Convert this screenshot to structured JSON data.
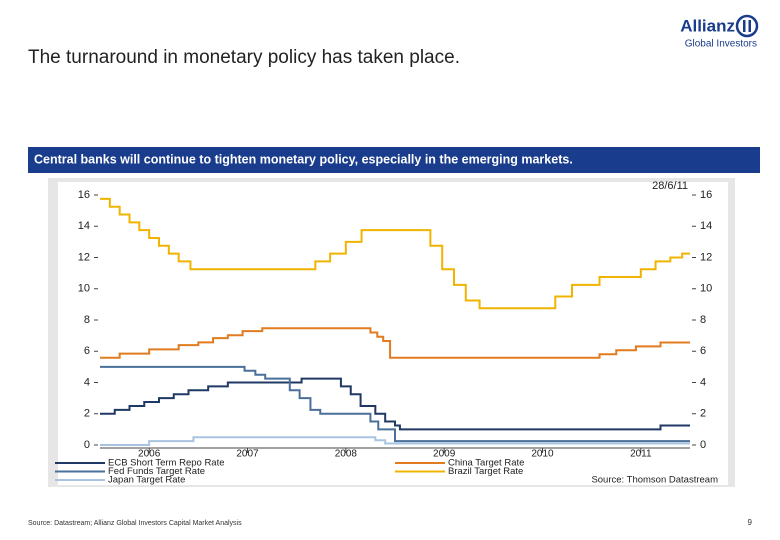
{
  "header": {
    "title": "The turnaround in monetary policy has taken place.",
    "logo": "Allianz",
    "logo_sub": "Global Investors"
  },
  "banner": "Central banks will continue to tighten monetary policy, especially in the emerging markets.",
  "chart_data": {
    "type": "line",
    "date_label": "28/6/11",
    "note": "Source: Thomson Datastream",
    "xlim": [
      2005.5,
      2011.5
    ],
    "xticks": [
      2006,
      2007,
      2008,
      2009,
      2010,
      2011
    ],
    "ylim": [
      0,
      16
    ],
    "yticks": [
      0,
      2,
      4,
      6,
      8,
      10,
      12,
      14,
      16
    ],
    "y2lim": [
      0,
      16
    ],
    "y2ticks": [
      0,
      2,
      4,
      6,
      8,
      10,
      12,
      14,
      16
    ],
    "series": [
      {
        "name": "ECB Short Term Repo Rate",
        "color": "#1f3864",
        "x": [
          2005.5,
          2005.65,
          2005.65,
          2005.8,
          2005.8,
          2005.95,
          2005.95,
          2006.1,
          2006.1,
          2006.25,
          2006.25,
          2006.4,
          2006.4,
          2006.6,
          2006.6,
          2006.8,
          2006.8,
          2007.55,
          2007.55,
          2007.95,
          2007.95,
          2008.05,
          2008.05,
          2008.15,
          2008.15,
          2008.3,
          2008.3,
          2008.4,
          2008.4,
          2008.5,
          2008.5,
          2008.55,
          2008.55,
          2011.2,
          2011.2,
          2011.5
        ],
        "values": [
          2.0,
          2.0,
          2.25,
          2.25,
          2.5,
          2.5,
          2.75,
          2.75,
          3.0,
          3.0,
          3.25,
          3.25,
          3.5,
          3.5,
          3.75,
          3.75,
          4.0,
          4.0,
          4.25,
          4.25,
          3.75,
          3.75,
          3.25,
          3.25,
          2.5,
          2.5,
          2.0,
          2.0,
          1.5,
          1.5,
          1.25,
          1.25,
          1.0,
          1.0,
          1.25,
          1.25
        ]
      },
      {
        "name": "Fed Funds Target Rate",
        "color": "#4a6f99",
        "x": [
          2005.5,
          2006.97,
          2006.97,
          2007.08,
          2007.08,
          2007.18,
          2007.18,
          2007.43,
          2007.43,
          2007.53,
          2007.53,
          2007.64,
          2007.64,
          2007.74,
          2007.74,
          2008.25,
          2008.25,
          2008.33,
          2008.33,
          2008.5,
          2008.5,
          2011.5
        ],
        "values": [
          5.0,
          5.0,
          4.75,
          4.75,
          4.5,
          4.5,
          4.25,
          4.25,
          3.5,
          3.5,
          3.0,
          3.0,
          2.25,
          2.25,
          2.0,
          2.0,
          1.5,
          1.5,
          1.0,
          1.0,
          0.25,
          0.25
        ]
      },
      {
        "name": "Japan Target Rate",
        "color": "#a9c4e0",
        "x": [
          2005.5,
          2006.0,
          2006.0,
          2006.45,
          2006.45,
          2008.3,
          2008.3,
          2008.4,
          2008.4,
          2011.5
        ],
        "values": [
          0,
          0,
          0.25,
          0.25,
          0.5,
          0.5,
          0.3,
          0.3,
          0.1,
          0.1
        ]
      },
      {
        "name": "China Target Rate",
        "color": "#e07b20",
        "x": [
          2005.5,
          2005.7,
          2005.7,
          2006.0,
          2006.0,
          2006.3,
          2006.3,
          2006.5,
          2006.5,
          2006.65,
          2006.65,
          2006.8,
          2006.8,
          2006.95,
          2006.95,
          2007.15,
          2007.15,
          2008.25,
          2008.25,
          2008.32,
          2008.32,
          2008.38,
          2008.38,
          2008.45,
          2008.45,
          2010.58,
          2010.58,
          2010.75,
          2010.75,
          2010.95,
          2010.95,
          2011.2,
          2011.2,
          2011.5
        ],
        "values": [
          5.58,
          5.58,
          5.85,
          5.85,
          6.12,
          6.12,
          6.39,
          6.39,
          6.57,
          6.57,
          6.84,
          6.84,
          7.02,
          7.02,
          7.29,
          7.29,
          7.47,
          7.47,
          7.2,
          7.2,
          6.93,
          6.93,
          6.66,
          6.66,
          5.58,
          5.58,
          5.81,
          5.81,
          6.06,
          6.06,
          6.31,
          6.31,
          6.56,
          6.56
        ]
      },
      {
        "name": "Brazil Target Rate",
        "color": "#f0b400",
        "x": [
          2005.5,
          2005.6,
          2005.6,
          2005.7,
          2005.7,
          2005.8,
          2005.8,
          2005.9,
          2005.9,
          2006.0,
          2006.0,
          2006.1,
          2006.1,
          2006.2,
          2006.2,
          2006.3,
          2006.3,
          2006.42,
          2006.42,
          2007.69,
          2007.69,
          2007.84,
          2007.84,
          2008.0,
          2008.0,
          2008.16,
          2008.16,
          2008.86,
          2008.86,
          2008.98,
          2008.98,
          2009.1,
          2009.1,
          2009.22,
          2009.22,
          2009.36,
          2009.36,
          2010.13,
          2010.13,
          2010.3,
          2010.3,
          2010.58,
          2010.58,
          2011.0,
          2011.0,
          2011.15,
          2011.15,
          2011.3,
          2011.3,
          2011.42,
          2011.42,
          2011.5
        ],
        "values": [
          15.75,
          15.75,
          15.25,
          15.25,
          14.75,
          14.75,
          14.25,
          14.25,
          13.75,
          13.75,
          13.25,
          13.25,
          12.75,
          12.75,
          12.25,
          12.25,
          11.75,
          11.75,
          11.25,
          11.25,
          11.75,
          11.75,
          12.25,
          12.25,
          13.0,
          13.0,
          13.75,
          13.75,
          12.75,
          12.75,
          11.25,
          11.25,
          10.25,
          10.25,
          9.25,
          9.25,
          8.75,
          8.75,
          9.5,
          9.5,
          10.25,
          10.25,
          10.75,
          10.75,
          11.25,
          11.25,
          11.75,
          11.75,
          12.0,
          12.0,
          12.25,
          12.25
        ]
      }
    ]
  },
  "footer": {
    "source": "Source: Datastream; Allianz Global Investors Capital Market Analysis",
    "page": "9"
  }
}
